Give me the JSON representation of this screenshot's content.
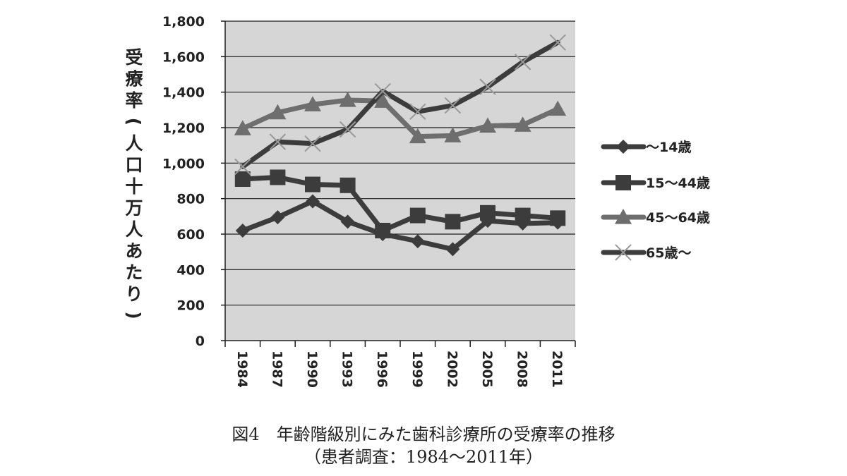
{
  "chart_data": {
    "type": "line",
    "categories": [
      "1984",
      "1987",
      "1990",
      "1993",
      "1996",
      "1999",
      "2002",
      "2005",
      "2008",
      "2011"
    ],
    "ylabel": "受療率(人口十万人あたり)",
    "ylim": [
      0,
      1800
    ],
    "yticks": [
      0,
      200,
      400,
      600,
      800,
      1000,
      1200,
      1400,
      1600,
      1800
    ],
    "ytick_labels": [
      "0",
      "200",
      "400",
      "600",
      "800",
      "1,000",
      "1,200",
      "1,400",
      "1,600",
      "1,800"
    ],
    "grid": true,
    "legend_position": "right",
    "series": [
      {
        "name": "〜14歳",
        "marker": "diamond",
        "color": "#3c3c3c",
        "values": [
          620,
          695,
          785,
          670,
          600,
          560,
          515,
          675,
          660,
          665
        ]
      },
      {
        "name": "15〜44歳",
        "marker": "square",
        "color": "#3c3c3c",
        "values": [
          910,
          920,
          880,
          875,
          620,
          705,
          670,
          720,
          705,
          690
        ]
      },
      {
        "name": "45〜64歳",
        "marker": "triangle",
        "color": "#6e6e6e",
        "values": [
          1195,
          1285,
          1330,
          1355,
          1350,
          1150,
          1155,
          1210,
          1215,
          1305
        ]
      },
      {
        "name": "65歳〜",
        "marker": "x",
        "color": "#3c3c3c",
        "values": [
          980,
          1120,
          1110,
          1190,
          1405,
          1290,
          1325,
          1430,
          1570,
          1680
        ]
      }
    ]
  },
  "caption": {
    "title": "図4　年齢階級別にみた歯科診療所の受療率の推移",
    "subtitle": "（患者調査：1984〜2011年）"
  }
}
